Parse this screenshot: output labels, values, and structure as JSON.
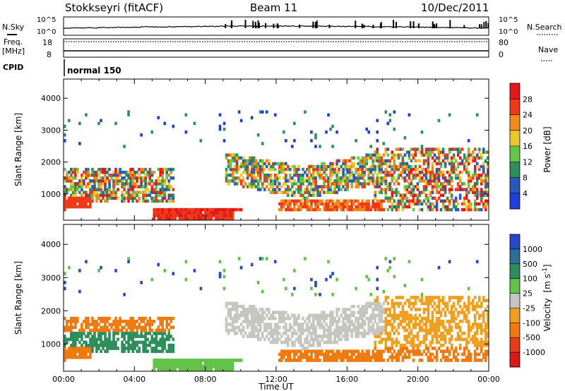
{
  "header": {
    "station": "Stokkseyri (fitACF)",
    "beam": "Beam 11",
    "date": "10/Dec/2011"
  },
  "top_panels": {
    "nsky_label": "N.Sky",
    "nsearch_label": "N.Search",
    "noise_ticks": [
      "10^5",
      "10^0"
    ],
    "freq_label": "Freq.",
    "freq_unit": "[MHz]",
    "freq_ticks": [
      "18",
      "8"
    ],
    "nave_label": "Nave",
    "nave_ticks": [
      "80",
      "0"
    ],
    "cpid_label": "CPID",
    "cpid_value": "normal 150"
  },
  "chart_data": [
    {
      "type": "heatmap",
      "name": "power",
      "ylabel": "Slant Range [km]",
      "yticks": [
        1000,
        2000,
        3000,
        4000
      ],
      "ylim": [
        180,
        4600
      ],
      "xlim_hours": [
        0,
        24
      ],
      "xticks": [
        "00:00",
        "04:00",
        "08:00",
        "12:00",
        "16:00",
        "20:00",
        "00:00"
      ],
      "colorbar": {
        "label": "Power [dB]",
        "ticks": [
          "4",
          "8",
          "12",
          "16",
          "20",
          "24",
          "28"
        ],
        "colors": [
          "#1f3fd8",
          "#2b59b8",
          "#2e8f5c",
          "#63c84a",
          "#e8c82a",
          "#f08a1c",
          "#ee3a1a",
          "#e01a1a"
        ]
      }
    },
    {
      "type": "heatmap",
      "name": "velocity",
      "ylabel": "Slant Range [km]",
      "yticks": [
        1000,
        2000,
        3000,
        4000
      ],
      "ylim": [
        180,
        4600
      ],
      "xlim_hours": [
        0,
        24
      ],
      "xticks": [
        "00:00",
        "04:00",
        "08:00",
        "12:00",
        "16:00",
        "20:00",
        "00:00"
      ],
      "xlabel": "Time UT",
      "colorbar": {
        "label": "Velocity",
        "unit_text": "[m s",
        "unit_exp": "-1",
        "unit_close": "]",
        "ticks": [
          "1000",
          "500",
          "100",
          "25",
          "-25",
          "-100",
          "-500",
          "-1000"
        ],
        "colors": [
          "#2848c8",
          "#2a6e9a",
          "#2e8f5c",
          "#62c24a",
          "#c6c6c0",
          "#f0a020",
          "#ee7a10",
          "#e83a18",
          "#dd1818"
        ]
      }
    }
  ],
  "colors": {
    "ground_scatter": "#c6c6c0",
    "text": "#000000"
  }
}
